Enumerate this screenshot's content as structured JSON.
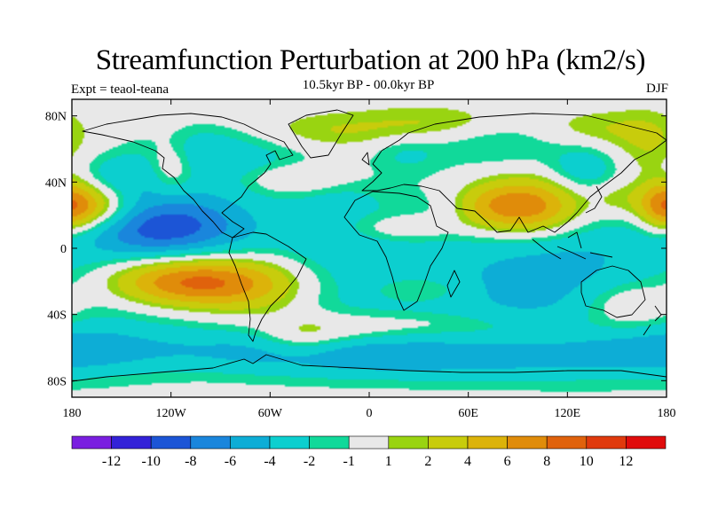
{
  "chart_data": {
    "type": "contour-map",
    "title": "Streamfunction Perturbation at 200 hPa (km2/s)",
    "subtitle": "10.5kyr BP - 00.0kyr BP",
    "left_label": "Expt = teaol-teana",
    "right_label": "DJF",
    "xlim": [
      -180,
      180
    ],
    "ylim": [
      -90,
      90
    ],
    "x_ticks": [
      {
        "value": -180,
        "label": "180"
      },
      {
        "value": -120,
        "label": "120W"
      },
      {
        "value": -60,
        "label": "60W"
      },
      {
        "value": 0,
        "label": "0"
      },
      {
        "value": 60,
        "label": "60E"
      },
      {
        "value": 120,
        "label": "120E"
      },
      {
        "value": 180,
        "label": "180"
      }
    ],
    "y_ticks": [
      {
        "value": 80,
        "label": "80N"
      },
      {
        "value": 40,
        "label": "40N"
      },
      {
        "value": 0,
        "label": "0"
      },
      {
        "value": -40,
        "label": "40S"
      },
      {
        "value": -80,
        "label": "80S"
      }
    ],
    "colorbar": {
      "colors": [
        "#7a1fe0",
        "#3322d8",
        "#1c55d6",
        "#1a86dc",
        "#0dadd6",
        "#0ccfcf",
        "#11d99a",
        "#e8e8e8",
        "#99d411",
        "#c8cc0c",
        "#dcb30a",
        "#e08c0a",
        "#e0620c",
        "#e03a0d",
        "#e00c0c"
      ],
      "labels": [
        "-12",
        "-10",
        "-8",
        "-6",
        "-4",
        "-2",
        "-1",
        "1",
        "2",
        "4",
        "6",
        "8",
        "10",
        "12"
      ]
    },
    "features": [
      {
        "lon": 80,
        "lat": -20,
        "sx": 200,
        "sy": 36,
        "value": -3.5
      },
      {
        "lon": 95,
        "lat": -25,
        "sx": 22,
        "sy": 13,
        "value": -1.2
      },
      {
        "lon": -60,
        "lat": -62,
        "sx": 80,
        "sy": 9,
        "value": -3.0
      },
      {
        "lon": 30,
        "lat": -68,
        "sx": 65,
        "sy": 8,
        "value": -2.6
      },
      {
        "lon": 140,
        "lat": -62,
        "sx": 50,
        "sy": 12,
        "value": -2.5
      },
      {
        "lon": -170,
        "lat": -62,
        "sx": 25,
        "sy": 10,
        "value": -1.5
      },
      {
        "lon": -115,
        "lat": 15,
        "sx": 32,
        "sy": 15,
        "value": -6.5
      },
      {
        "lon": -150,
        "lat": 10,
        "sx": 30,
        "sy": 10,
        "value": -2.5
      },
      {
        "lon": -150,
        "lat": 43,
        "sx": 22,
        "sy": 10,
        "value": -3.3
      },
      {
        "lon": -110,
        "lat": 60,
        "sx": 20,
        "sy": 10,
        "value": -2.3
      },
      {
        "lon": -75,
        "lat": 55,
        "sx": 30,
        "sy": 12,
        "value": -2.5
      },
      {
        "lon": -20,
        "lat": 28,
        "sx": 20,
        "sy": 10,
        "value": -1.5
      },
      {
        "lon": 130,
        "lat": 48,
        "sx": 15,
        "sy": 10,
        "value": -3.0
      },
      {
        "lon": 75,
        "lat": 65,
        "sx": 30,
        "sy": 10,
        "value": -2.2
      },
      {
        "lon": 22,
        "lat": 57,
        "sx": 15,
        "sy": 8,
        "value": -1.8
      },
      {
        "lon": -20,
        "lat": 5,
        "sx": 25,
        "sy": 10,
        "value": -1.2
      },
      {
        "lon": 120,
        "lat": -5,
        "sx": 30,
        "sy": 15,
        "value": -1.2
      },
      {
        "lon": -110,
        "lat": -20,
        "sx": 35,
        "sy": 11,
        "value": 10.5
      },
      {
        "lon": -65,
        "lat": -25,
        "sx": 25,
        "sy": 15,
        "value": 3.5
      },
      {
        "lon": -170,
        "lat": 25,
        "sx": 18,
        "sy": 11,
        "value": 7.0
      },
      {
        "lon": 178,
        "lat": 25,
        "sx": 10,
        "sy": 11,
        "value": 5.0
      },
      {
        "lon": 97,
        "lat": 25,
        "sx": 22,
        "sy": 12,
        "value": 8.5
      },
      {
        "lon": 70,
        "lat": 25,
        "sx": 15,
        "sy": 10,
        "value": 3.0
      },
      {
        "lon": -120,
        "lat": 50,
        "sx": 10,
        "sy": 12,
        "value": 3.5
      },
      {
        "lon": -45,
        "lat": 42,
        "sx": 20,
        "sy": 6,
        "value": 2.8
      },
      {
        "lon": 40,
        "lat": 75,
        "sx": 35,
        "sy": 8,
        "value": 2.5
      },
      {
        "lon": -30,
        "lat": 70,
        "sx": 30,
        "sy": 8,
        "value": 2.0
      },
      {
        "lon": 140,
        "lat": 72,
        "sx": 25,
        "sy": 8,
        "value": 2.0
      },
      {
        "lon": 170,
        "lat": 60,
        "sx": 15,
        "sy": 15,
        "value": 2.2
      },
      {
        "lon": 150,
        "lat": 30,
        "sx": 12,
        "sy": 8,
        "value": 2.0
      },
      {
        "lon": 20,
        "lat": 12,
        "sx": 25,
        "sy": 6,
        "value": 2.5
      },
      {
        "lon": 30,
        "lat": -25,
        "sx": 20,
        "sy": 6,
        "value": 2.2
      },
      {
        "lon": -40,
        "lat": -55,
        "sx": 18,
        "sy": 8,
        "value": 3.0
      },
      {
        "lon": -10,
        "lat": -48,
        "sx": 28,
        "sy": 7,
        "value": 2.5
      },
      {
        "lon": 160,
        "lat": -35,
        "sx": 20,
        "sy": 10,
        "value": 3.5
      },
      {
        "lon": 40,
        "lat": -45,
        "sx": 25,
        "sy": 5,
        "value": 1.2
      },
      {
        "lon": 100,
        "lat": -50,
        "sx": 40,
        "sy": 7,
        "value": 1.5
      }
    ]
  }
}
